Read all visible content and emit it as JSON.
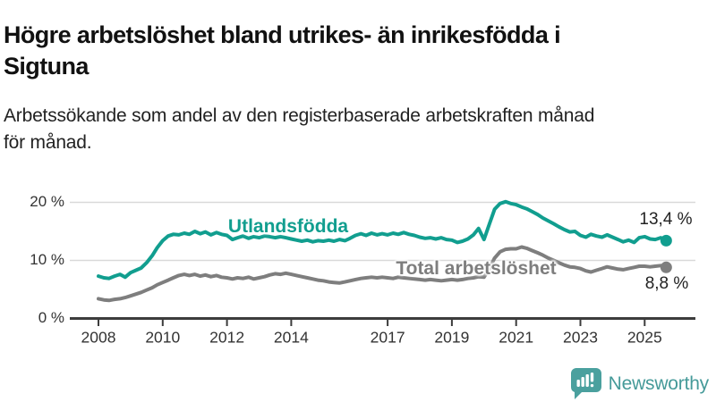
{
  "header": {
    "title_lines": [
      "Högre arbetslöshet bland utrikes- än inrikesfödda i",
      "Sigtuna"
    ],
    "subtitle_lines": [
      "Arbetssökande som andel av den registerbaserade arbetskraften månad",
      "för månad."
    ]
  },
  "colors": {
    "foreign_born_line": "#119e8f",
    "total_line": "#7e7e7e",
    "axis": "#3c3c3c",
    "gridline": "#d9d9d9",
    "tick_text": "#333333",
    "brand_teal": "#4aa09e"
  },
  "chart_data": {
    "type": "line",
    "title": "Högre arbetslöshet bland utrikes- än inrikesfödda i Sigtuna",
    "xlabel": "",
    "ylabel": "",
    "grid": "horizontal-y",
    "legend_position": "inline-on-lines",
    "xlim": [
      2007.2,
      2026.6
    ],
    "ylim": [
      0,
      24.5
    ],
    "x_ticks": [
      {
        "year": 2008,
        "label": "2008"
      },
      {
        "year": 2010,
        "label": "2010"
      },
      {
        "year": 2012,
        "label": "2012"
      },
      {
        "year": 2014,
        "label": "2014"
      },
      {
        "year": 2017,
        "label": "2017"
      },
      {
        "year": 2019,
        "label": "2019"
      },
      {
        "year": 2021,
        "label": "2021"
      },
      {
        "year": 2023,
        "label": "2023"
      },
      {
        "year": 2025,
        "label": "2025"
      }
    ],
    "y_ticks": [
      {
        "value": 0,
        "label": "0 %"
      },
      {
        "value": 10,
        "label": "10 %"
      },
      {
        "value": 20,
        "label": "20 %"
      }
    ],
    "series": [
      {
        "name": "Utlandsfödda",
        "color": "#119e8f",
        "end_label": "13,4 %",
        "end_value": 13.4,
        "points": [
          [
            2008.0,
            7.3
          ],
          [
            2008.17,
            7.0
          ],
          [
            2008.33,
            6.9
          ],
          [
            2008.5,
            7.3
          ],
          [
            2008.67,
            7.6
          ],
          [
            2008.83,
            7.1
          ],
          [
            2009.0,
            7.9
          ],
          [
            2009.17,
            8.3
          ],
          [
            2009.33,
            8.7
          ],
          [
            2009.5,
            9.6
          ],
          [
            2009.67,
            10.8
          ],
          [
            2009.83,
            12.2
          ],
          [
            2010.0,
            13.4
          ],
          [
            2010.17,
            14.2
          ],
          [
            2010.33,
            14.5
          ],
          [
            2010.5,
            14.4
          ],
          [
            2010.67,
            14.7
          ],
          [
            2010.83,
            14.5
          ],
          [
            2011.0,
            15.0
          ],
          [
            2011.17,
            14.6
          ],
          [
            2011.33,
            14.9
          ],
          [
            2011.5,
            14.4
          ],
          [
            2011.67,
            14.8
          ],
          [
            2011.83,
            14.5
          ],
          [
            2012.0,
            14.3
          ],
          [
            2012.17,
            13.6
          ],
          [
            2012.33,
            13.9
          ],
          [
            2012.5,
            14.2
          ],
          [
            2012.67,
            13.8
          ],
          [
            2012.83,
            14.1
          ],
          [
            2013.0,
            13.9
          ],
          [
            2013.17,
            14.2
          ],
          [
            2013.33,
            14.1
          ],
          [
            2013.5,
            13.9
          ],
          [
            2013.67,
            14.1
          ],
          [
            2013.83,
            13.9
          ],
          [
            2014.0,
            13.7
          ],
          [
            2014.17,
            13.5
          ],
          [
            2014.33,
            13.3
          ],
          [
            2014.5,
            13.5
          ],
          [
            2014.67,
            13.2
          ],
          [
            2014.83,
            13.4
          ],
          [
            2015.0,
            13.3
          ],
          [
            2015.17,
            13.5
          ],
          [
            2015.33,
            13.3
          ],
          [
            2015.5,
            13.6
          ],
          [
            2015.67,
            13.4
          ],
          [
            2015.83,
            13.8
          ],
          [
            2016.0,
            14.3
          ],
          [
            2016.17,
            14.6
          ],
          [
            2016.33,
            14.3
          ],
          [
            2016.5,
            14.7
          ],
          [
            2016.67,
            14.4
          ],
          [
            2016.83,
            14.6
          ],
          [
            2017.0,
            14.4
          ],
          [
            2017.17,
            14.7
          ],
          [
            2017.33,
            14.5
          ],
          [
            2017.5,
            14.8
          ],
          [
            2017.67,
            14.5
          ],
          [
            2017.83,
            14.3
          ],
          [
            2018.0,
            14.0
          ],
          [
            2018.17,
            13.8
          ],
          [
            2018.33,
            13.9
          ],
          [
            2018.5,
            13.7
          ],
          [
            2018.67,
            13.9
          ],
          [
            2018.83,
            13.6
          ],
          [
            2019.0,
            13.5
          ],
          [
            2019.17,
            13.1
          ],
          [
            2019.33,
            13.3
          ],
          [
            2019.5,
            13.7
          ],
          [
            2019.67,
            14.4
          ],
          [
            2019.83,
            15.5
          ],
          [
            2020.0,
            13.6
          ],
          [
            2020.17,
            16.3
          ],
          [
            2020.33,
            18.8
          ],
          [
            2020.5,
            19.8
          ],
          [
            2020.67,
            20.1
          ],
          [
            2020.83,
            19.8
          ],
          [
            2021.0,
            19.6
          ],
          [
            2021.17,
            19.2
          ],
          [
            2021.33,
            18.9
          ],
          [
            2021.5,
            18.4
          ],
          [
            2021.67,
            17.9
          ],
          [
            2021.83,
            17.3
          ],
          [
            2022.0,
            16.8
          ],
          [
            2022.17,
            16.3
          ],
          [
            2022.33,
            15.8
          ],
          [
            2022.5,
            15.3
          ],
          [
            2022.67,
            14.9
          ],
          [
            2022.83,
            15.0
          ],
          [
            2023.0,
            14.3
          ],
          [
            2023.17,
            14.0
          ],
          [
            2023.33,
            14.5
          ],
          [
            2023.5,
            14.2
          ],
          [
            2023.67,
            14.0
          ],
          [
            2023.83,
            14.4
          ],
          [
            2024.0,
            14.0
          ],
          [
            2024.17,
            13.6
          ],
          [
            2024.33,
            13.2
          ],
          [
            2024.5,
            13.5
          ],
          [
            2024.67,
            13.1
          ],
          [
            2024.83,
            13.9
          ],
          [
            2025.0,
            14.1
          ],
          [
            2025.17,
            13.7
          ],
          [
            2025.33,
            13.6
          ],
          [
            2025.5,
            13.9
          ],
          [
            2025.67,
            13.4
          ]
        ]
      },
      {
        "name": "Total arbetslöshet",
        "color": "#7e7e7e",
        "end_label": "8,8 %",
        "end_value": 8.8,
        "points": [
          [
            2008.0,
            3.4
          ],
          [
            2008.17,
            3.2
          ],
          [
            2008.33,
            3.1
          ],
          [
            2008.5,
            3.3
          ],
          [
            2008.67,
            3.4
          ],
          [
            2008.83,
            3.6
          ],
          [
            2009.0,
            3.9
          ],
          [
            2009.17,
            4.2
          ],
          [
            2009.33,
            4.5
          ],
          [
            2009.5,
            4.9
          ],
          [
            2009.67,
            5.3
          ],
          [
            2009.83,
            5.8
          ],
          [
            2010.0,
            6.2
          ],
          [
            2010.17,
            6.6
          ],
          [
            2010.33,
            7.0
          ],
          [
            2010.5,
            7.4
          ],
          [
            2010.67,
            7.6
          ],
          [
            2010.83,
            7.4
          ],
          [
            2011.0,
            7.6
          ],
          [
            2011.17,
            7.3
          ],
          [
            2011.33,
            7.5
          ],
          [
            2011.5,
            7.2
          ],
          [
            2011.67,
            7.4
          ],
          [
            2011.83,
            7.1
          ],
          [
            2012.0,
            7.0
          ],
          [
            2012.17,
            6.8
          ],
          [
            2012.33,
            7.0
          ],
          [
            2012.5,
            6.9
          ],
          [
            2012.67,
            7.1
          ],
          [
            2012.83,
            6.8
          ],
          [
            2013.0,
            7.0
          ],
          [
            2013.17,
            7.2
          ],
          [
            2013.33,
            7.5
          ],
          [
            2013.5,
            7.7
          ],
          [
            2013.67,
            7.6
          ],
          [
            2013.83,
            7.8
          ],
          [
            2014.0,
            7.6
          ],
          [
            2014.17,
            7.4
          ],
          [
            2014.33,
            7.2
          ],
          [
            2014.5,
            7.0
          ],
          [
            2014.67,
            6.8
          ],
          [
            2014.83,
            6.6
          ],
          [
            2015.0,
            6.5
          ],
          [
            2015.17,
            6.3
          ],
          [
            2015.33,
            6.2
          ],
          [
            2015.5,
            6.1
          ],
          [
            2015.67,
            6.3
          ],
          [
            2015.83,
            6.5
          ],
          [
            2016.0,
            6.7
          ],
          [
            2016.17,
            6.9
          ],
          [
            2016.33,
            7.0
          ],
          [
            2016.5,
            7.1
          ],
          [
            2016.67,
            7.0
          ],
          [
            2016.83,
            7.1
          ],
          [
            2017.0,
            7.0
          ],
          [
            2017.17,
            6.9
          ],
          [
            2017.33,
            7.1
          ],
          [
            2017.5,
            7.0
          ],
          [
            2017.67,
            6.9
          ],
          [
            2017.83,
            6.8
          ],
          [
            2018.0,
            6.7
          ],
          [
            2018.17,
            6.6
          ],
          [
            2018.33,
            6.7
          ],
          [
            2018.5,
            6.6
          ],
          [
            2018.67,
            6.5
          ],
          [
            2018.83,
            6.6
          ],
          [
            2019.0,
            6.7
          ],
          [
            2019.17,
            6.6
          ],
          [
            2019.33,
            6.7
          ],
          [
            2019.5,
            6.9
          ],
          [
            2019.67,
            7.0
          ],
          [
            2019.83,
            7.2
          ],
          [
            2020.0,
            7.1
          ],
          [
            2020.17,
            8.6
          ],
          [
            2020.33,
            10.4
          ],
          [
            2020.5,
            11.5
          ],
          [
            2020.67,
            11.9
          ],
          [
            2020.83,
            12.0
          ],
          [
            2021.0,
            12.0
          ],
          [
            2021.17,
            12.3
          ],
          [
            2021.33,
            12.1
          ],
          [
            2021.5,
            11.7
          ],
          [
            2021.67,
            11.3
          ],
          [
            2021.83,
            10.9
          ],
          [
            2022.0,
            10.4
          ],
          [
            2022.17,
            10.0
          ],
          [
            2022.33,
            9.6
          ],
          [
            2022.5,
            9.2
          ],
          [
            2022.67,
            8.9
          ],
          [
            2022.83,
            8.8
          ],
          [
            2023.0,
            8.6
          ],
          [
            2023.17,
            8.2
          ],
          [
            2023.33,
            8.0
          ],
          [
            2023.5,
            8.3
          ],
          [
            2023.67,
            8.6
          ],
          [
            2023.83,
            8.9
          ],
          [
            2024.0,
            8.7
          ],
          [
            2024.17,
            8.5
          ],
          [
            2024.33,
            8.4
          ],
          [
            2024.5,
            8.6
          ],
          [
            2024.67,
            8.8
          ],
          [
            2024.83,
            9.0
          ],
          [
            2025.0,
            9.0
          ],
          [
            2025.17,
            8.9
          ],
          [
            2025.33,
            9.0
          ],
          [
            2025.5,
            9.1
          ],
          [
            2025.67,
            8.8
          ]
        ]
      }
    ]
  },
  "footer": {
    "brand": "Newsworthy"
  }
}
